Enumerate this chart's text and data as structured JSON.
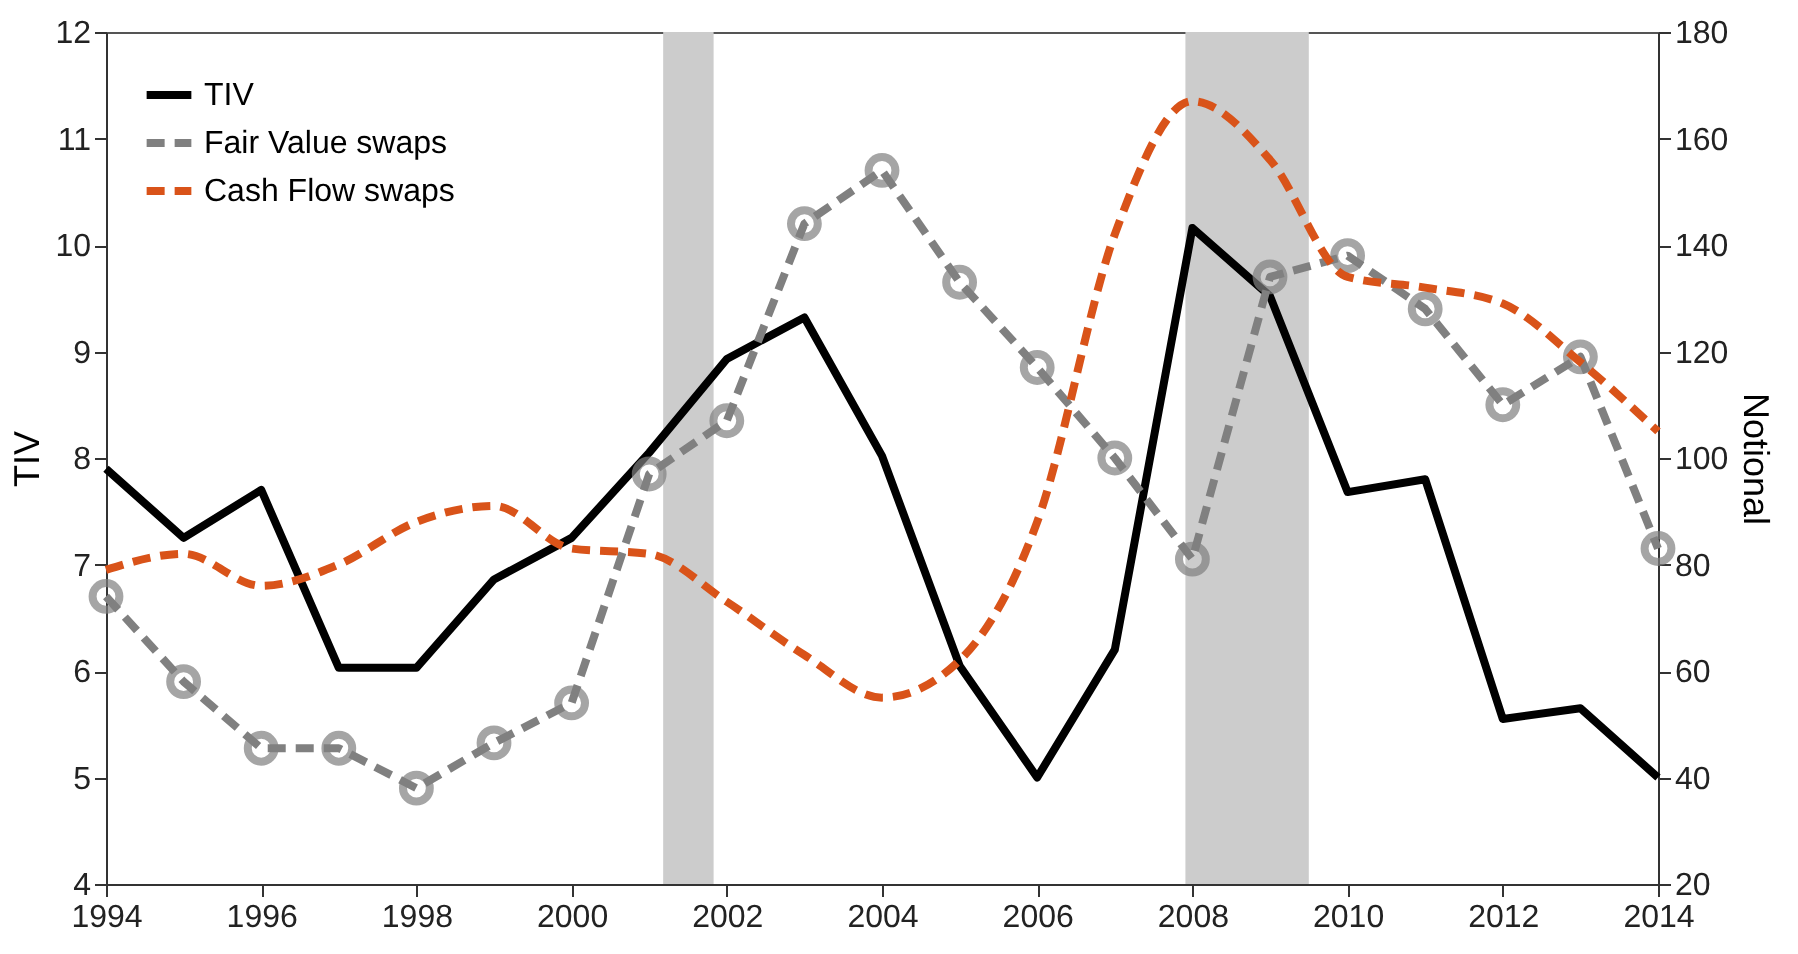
{
  "chart_data": {
    "type": "line",
    "xlabel": null,
    "ylabel": "TIV",
    "y2label": "Notional",
    "x": [
      1994,
      1995,
      1996,
      1997,
      1998,
      1999,
      2000,
      2001,
      2002,
      2003,
      2004,
      2005,
      2006,
      2007,
      2008,
      2009,
      2010,
      2011,
      2012,
      2013,
      2014
    ],
    "xlim": [
      1994,
      2014
    ],
    "xticks": [
      1994,
      1996,
      1998,
      2000,
      2002,
      2004,
      2006,
      2008,
      2010,
      2012,
      2014
    ],
    "ylim": [
      4,
      12
    ],
    "yticks": [
      4,
      5,
      6,
      7,
      8,
      9,
      10,
      11,
      12
    ],
    "y2lim": [
      20,
      180
    ],
    "y2ticks": [
      20,
      40,
      60,
      80,
      100,
      120,
      140,
      160,
      180
    ],
    "series": [
      {
        "name": "TIV",
        "color": "#000000",
        "line_style": "solid",
        "marker": "none",
        "values": [
          7.9,
          7.25,
          7.7,
          6.03,
          6.03,
          6.86,
          7.25,
          8.05,
          8.93,
          9.32,
          8.02,
          6.05,
          5.0,
          6.2,
          10.16,
          9.52,
          7.68,
          7.8,
          5.55,
          5.65,
          5.0
        ]
      },
      {
        "name": "Fair Value swaps",
        "color": "#808080",
        "line_style": "dashed",
        "marker": "circle",
        "axis": "y2",
        "values": [
          74,
          58,
          45.5,
          45.5,
          38,
          46.5,
          54,
          97,
          107,
          144,
          154,
          133,
          117,
          100,
          81,
          134,
          138,
          128,
          110,
          119,
          83
        ]
      },
      {
        "name": "Cash Flow swaps",
        "color": "#d95319",
        "line_style": "dashed",
        "marker": "none",
        "axis": "y2",
        "values": [
          79,
          82,
          76,
          80,
          88,
          91,
          83,
          82,
          73,
          63,
          55,
          62,
          88,
          142,
          167,
          156,
          134,
          132,
          129,
          118,
          105
        ]
      }
    ],
    "bands": [
      {
        "axis": "x",
        "from": 2001.18,
        "to": 2001.83,
        "label": null,
        "color": "#cccccc"
      },
      {
        "axis": "x",
        "from": 2007.91,
        "to": 2009.5,
        "label": null,
        "color": "#cccccc"
      }
    ],
    "legend": "top left",
    "grid": false
  }
}
